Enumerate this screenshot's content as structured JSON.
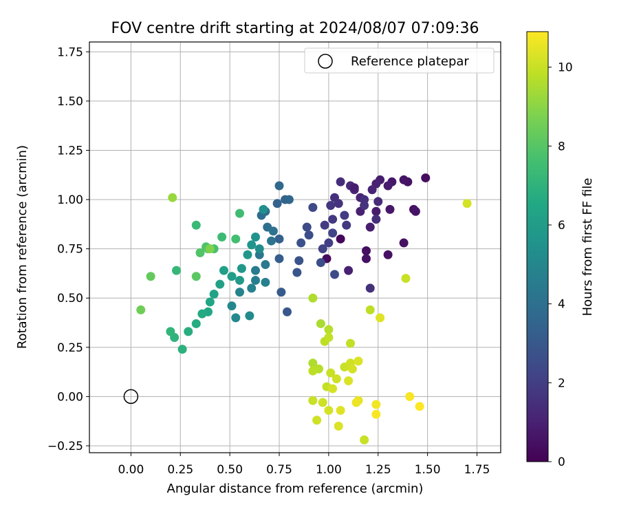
{
  "chart_data": {
    "type": "scatter",
    "title": "FOV centre drift starting at 2024/08/07 07:09:36",
    "xlabel": "Angular distance from reference (arcmin)",
    "ylabel": "Rotation from reference (arcmin)",
    "xlim": [
      -0.21,
      1.87
    ],
    "ylim": [
      -0.285,
      1.8
    ],
    "xticks": [
      "0.00",
      "0.25",
      "0.50",
      "0.75",
      "1.00",
      "1.25",
      "1.50",
      "1.75"
    ],
    "yticks": [
      "-0.25",
      "0.00",
      "0.25",
      "0.50",
      "0.75",
      "1.00",
      "1.25",
      "1.50",
      "1.75"
    ],
    "grid": true,
    "legend": {
      "placement": "top-right",
      "entries": [
        "Reference platepar"
      ]
    },
    "reference_point": {
      "name": "Reference platepar",
      "x": 0.0,
      "y": 0.0
    },
    "colorbar": {
      "label": "Hours from first FF file",
      "range": [
        0,
        10.9
      ],
      "ticks": [
        "0",
        "2",
        "4",
        "6",
        "8",
        "10"
      ],
      "colormap": "viridis"
    },
    "points": [
      [
        1.49,
        1.11,
        0.4
      ],
      [
        1.43,
        0.95,
        0.5
      ],
      [
        1.44,
        0.94,
        0.6
      ],
      [
        1.4,
        1.09,
        0.5
      ],
      [
        1.38,
        1.1,
        0.6
      ],
      [
        1.32,
        1.09,
        0.7
      ],
      [
        1.3,
        1.07,
        0.8
      ],
      [
        1.26,
        1.1,
        0.9
      ],
      [
        1.24,
        1.08,
        1.0
      ],
      [
        1.22,
        1.05,
        1.1
      ],
      [
        1.38,
        0.78,
        0.5
      ],
      [
        1.3,
        0.72,
        0.5
      ],
      [
        1.19,
        0.74,
        0.4
      ],
      [
        1.19,
        0.7,
        0.5
      ],
      [
        1.31,
        0.95,
        0.7
      ],
      [
        1.24,
        0.94,
        0.8
      ],
      [
        1.21,
        0.86,
        0.9
      ],
      [
        1.16,
        0.94,
        1.0
      ],
      [
        1.16,
        1.01,
        1.1
      ],
      [
        1.13,
        1.05,
        1.2
      ],
      [
        1.11,
        1.07,
        1.3
      ],
      [
        1.06,
        1.09,
        1.4
      ],
      [
        1.03,
        1.01,
        1.5
      ],
      [
        1.05,
        0.98,
        1.6
      ],
      [
        1.01,
        0.97,
        1.7
      ],
      [
        1.02,
        0.9,
        1.8
      ],
      [
        0.98,
        0.87,
        1.9
      ],
      [
        1.0,
        0.78,
        2.0
      ],
      [
        0.97,
        0.75,
        2.1
      ],
      [
        0.99,
        0.7,
        0.3
      ],
      [
        1.06,
        0.8,
        0.2
      ],
      [
        1.21,
        0.55,
        1.5
      ],
      [
        1.1,
        0.64,
        1.0
      ],
      [
        1.03,
        0.62,
        2.5
      ],
      [
        1.25,
        0.99,
        1.3
      ],
      [
        1.24,
        0.9,
        1.4
      ],
      [
        1.18,
        0.97,
        1.6
      ],
      [
        1.09,
        0.87,
        1.8
      ],
      [
        1.08,
        0.92,
        1.9
      ],
      [
        1.02,
        0.83,
        2.2
      ],
      [
        0.96,
        0.68,
        2.6
      ],
      [
        0.92,
        0.96,
        2.4
      ],
      [
        0.89,
        0.86,
        2.5
      ],
      [
        0.9,
        0.82,
        2.6
      ],
      [
        0.86,
        0.78,
        2.7
      ],
      [
        0.85,
        0.69,
        2.8
      ],
      [
        0.84,
        0.63,
        2.9
      ],
      [
        0.79,
        0.43,
        3.0
      ],
      [
        0.76,
        0.53,
        3.1
      ],
      [
        0.75,
        0.7,
        3.2
      ],
      [
        0.75,
        0.8,
        3.3
      ],
      [
        0.74,
        0.98,
        3.4
      ],
      [
        0.78,
        1.0,
        3.5
      ],
      [
        0.8,
        1.0,
        3.6
      ],
      [
        0.75,
        1.07,
        3.7
      ],
      [
        0.68,
        0.94,
        3.8
      ],
      [
        0.66,
        0.92,
        3.9
      ],
      [
        0.69,
        0.86,
        4.0
      ],
      [
        0.72,
        0.84,
        4.1
      ],
      [
        0.71,
        0.79,
        4.2
      ],
      [
        0.65,
        0.72,
        4.3
      ],
      [
        0.68,
        0.67,
        4.4
      ],
      [
        0.63,
        0.64,
        4.5
      ],
      [
        0.63,
        0.59,
        4.6
      ],
      [
        0.68,
        0.58,
        4.7
      ],
      [
        0.61,
        0.55,
        4.8
      ],
      [
        0.55,
        0.53,
        4.9
      ],
      [
        0.51,
        0.46,
        5.0
      ],
      [
        0.53,
        0.4,
        5.1
      ],
      [
        0.6,
        0.41,
        5.2
      ],
      [
        0.65,
        0.75,
        5.3
      ],
      [
        0.67,
        0.95,
        5.4
      ],
      [
        0.63,
        0.81,
        5.5
      ],
      [
        0.61,
        0.77,
        5.6
      ],
      [
        0.59,
        0.72,
        5.7
      ],
      [
        0.56,
        0.65,
        5.8
      ],
      [
        0.55,
        0.59,
        5.9
      ],
      [
        0.51,
        0.61,
        6.0
      ],
      [
        0.47,
        0.64,
        6.1
      ],
      [
        0.45,
        0.57,
        6.2
      ],
      [
        0.42,
        0.52,
        6.3
      ],
      [
        0.4,
        0.48,
        6.4
      ],
      [
        0.39,
        0.43,
        6.5
      ],
      [
        0.36,
        0.42,
        6.6
      ],
      [
        0.33,
        0.37,
        6.7
      ],
      [
        0.29,
        0.33,
        6.8
      ],
      [
        0.26,
        0.24,
        6.9
      ],
      [
        0.22,
        0.3,
        7.0
      ],
      [
        0.2,
        0.33,
        7.1
      ],
      [
        0.23,
        0.64,
        7.2
      ],
      [
        0.33,
        0.87,
        7.3
      ],
      [
        0.46,
        0.81,
        7.4
      ],
      [
        0.55,
        0.93,
        7.5
      ],
      [
        0.53,
        0.8,
        7.6
      ],
      [
        0.42,
        0.75,
        7.7
      ],
      [
        0.38,
        0.76,
        7.8
      ],
      [
        0.35,
        0.73,
        7.9
      ],
      [
        0.39,
        0.75,
        8.0
      ],
      [
        0.33,
        0.61,
        8.1
      ],
      [
        0.1,
        0.61,
        8.3
      ],
      [
        0.05,
        0.44,
        8.5
      ],
      [
        0.92,
        0.5,
        9.6
      ],
      [
        0.96,
        0.37,
        9.5
      ],
      [
        1.0,
        0.34,
        9.7
      ],
      [
        0.98,
        0.28,
        9.8
      ],
      [
        1.0,
        0.3,
        9.9
      ],
      [
        1.08,
        0.15,
        10.0
      ],
      [
        1.11,
        0.17,
        10.1
      ],
      [
        1.12,
        0.14,
        10.2
      ],
      [
        1.15,
        0.18,
        10.3
      ],
      [
        0.92,
        0.17,
        9.6
      ],
      [
        0.95,
        0.14,
        9.7
      ],
      [
        0.92,
        0.13,
        9.8
      ],
      [
        0.99,
        0.05,
        9.9
      ],
      [
        1.01,
        0.12,
        10.0
      ],
      [
        1.04,
        0.09,
        10.1
      ],
      [
        1.02,
        0.04,
        10.2
      ],
      [
        1.1,
        0.08,
        10.3
      ],
      [
        0.92,
        -0.02,
        10.0
      ],
      [
        0.97,
        -0.03,
        10.1
      ],
      [
        1.0,
        -0.07,
        10.2
      ],
      [
        1.06,
        -0.07,
        10.4
      ],
      [
        1.15,
        -0.02,
        10.5
      ],
      [
        1.14,
        -0.03,
        10.6
      ],
      [
        0.94,
        -0.12,
        10.1
      ],
      [
        1.05,
        -0.15,
        10.3
      ],
      [
        1.18,
        -0.22,
        10.0
      ],
      [
        1.24,
        -0.09,
        10.8
      ],
      [
        1.24,
        -0.04,
        10.7
      ],
      [
        1.41,
        0.0,
        10.8
      ],
      [
        1.46,
        -0.05,
        10.9
      ],
      [
        1.39,
        0.6,
        10.0
      ],
      [
        1.21,
        0.44,
        9.8
      ],
      [
        1.26,
        0.4,
        10.4
      ],
      [
        1.7,
        0.98,
        10.2
      ],
      [
        0.21,
        1.01,
        9.2
      ],
      [
        0.4,
        0.75,
        8.8
      ],
      [
        1.11,
        0.27,
        9.9
      ],
      [
        1.18,
        1.0,
        1.5
      ],
      [
        1.13,
        1.06,
        0.9
      ]
    ]
  }
}
